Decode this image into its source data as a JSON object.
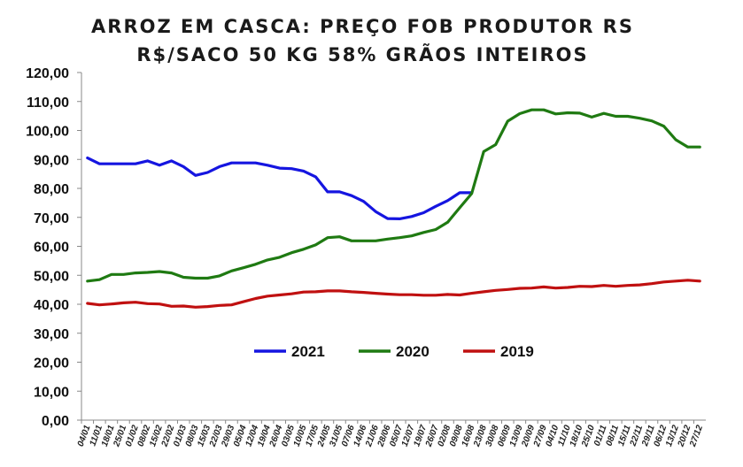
{
  "chart_data": {
    "type": "line",
    "title": "ARROZ EM CASCA: PREÇO FOB PRODUTOR RS",
    "subtitle": "R$/SACO 50 KG 58% GRÃOS INTEIROS",
    "xlabel": "",
    "ylabel": "",
    "ylim": [
      0,
      120
    ],
    "yticks": [
      "0,00",
      "10,00",
      "20,00",
      "30,00",
      "40,00",
      "50,00",
      "60,00",
      "70,00",
      "80,00",
      "90,00",
      "100,00",
      "110,00",
      "120,00"
    ],
    "grid": false,
    "legend": "center",
    "categories": [
      "04/01",
      "11/01",
      "18/01",
      "25/01",
      "01/02",
      "08/02",
      "15/02",
      "22/02",
      "01/03",
      "08/03",
      "15/03",
      "22/03",
      "29/03",
      "05/04",
      "12/04",
      "19/04",
      "26/04",
      "03/05",
      "10/05",
      "17/05",
      "24/05",
      "31/05",
      "07/06",
      "14/06",
      "21/06",
      "28/06",
      "05/07",
      "12/07",
      "19/07",
      "26/07",
      "02/08",
      "09/08",
      "16/08",
      "23/08",
      "30/08",
      "06/09",
      "13/09",
      "20/09",
      "27/09",
      "04/10",
      "11/10",
      "18/10",
      "25/10",
      "01/11",
      "08/11",
      "15/11",
      "22/11",
      "29/11",
      "06/12",
      "13/12",
      "20/12",
      "27/12"
    ],
    "series": [
      {
        "name": "2021",
        "color": "#1515e0",
        "values": [
          90.5,
          88.5,
          88.5,
          88.5,
          88.5,
          89.5,
          88,
          89.5,
          87.5,
          84.5,
          85.5,
          87.5,
          88.8,
          88.8,
          88.8,
          88,
          87,
          86.8,
          86,
          84,
          78.8,
          78.8,
          77.5,
          75.5,
          72,
          69.6,
          69.5,
          70.3,
          71.6,
          73.8,
          75.8,
          78.5,
          78.5,
          null,
          null,
          null,
          null,
          null,
          null,
          null,
          null,
          null,
          null,
          null,
          null,
          null,
          null,
          null,
          null,
          null,
          null,
          null
        ]
      },
      {
        "name": "2020",
        "color": "#1f7a12",
        "values": [
          48,
          48.5,
          50.3,
          50.3,
          50.8,
          51,
          51.3,
          50.8,
          49.3,
          49,
          49,
          49.8,
          51.5,
          52.6,
          53.8,
          55.3,
          56.2,
          57.8,
          59,
          60.5,
          63,
          63.3,
          61.9,
          61.9,
          61.9,
          62.5,
          63,
          63.6,
          64.8,
          65.8,
          68.3,
          73.3,
          78.2,
          92.7,
          95.1,
          103.2,
          105.8,
          107.1,
          107.1,
          105.7,
          106.1,
          106,
          104.6,
          105.9,
          104.9,
          104.9,
          104.2,
          103.3,
          101.5,
          96.8,
          94.3,
          94.3
        ]
      },
      {
        "name": "2019",
        "color": "#c01010",
        "values": [
          40.3,
          39.8,
          40.1,
          40.5,
          40.7,
          40.2,
          40.1,
          39.3,
          39.4,
          39,
          39.2,
          39.6,
          39.8,
          40.9,
          42,
          42.8,
          43.2,
          43.6,
          44.2,
          44.3,
          44.6,
          44.6,
          44.3,
          44.1,
          43.8,
          43.5,
          43.3,
          43.3,
          43.1,
          43.1,
          43.4,
          43.2,
          43.8,
          44.3,
          44.8,
          45.1,
          45.5,
          45.6,
          46,
          45.6,
          45.8,
          46.2,
          46.1,
          46.5,
          46.2,
          46.5,
          46.7,
          47.1,
          47.7,
          48,
          48.3,
          48
        ]
      }
    ]
  }
}
